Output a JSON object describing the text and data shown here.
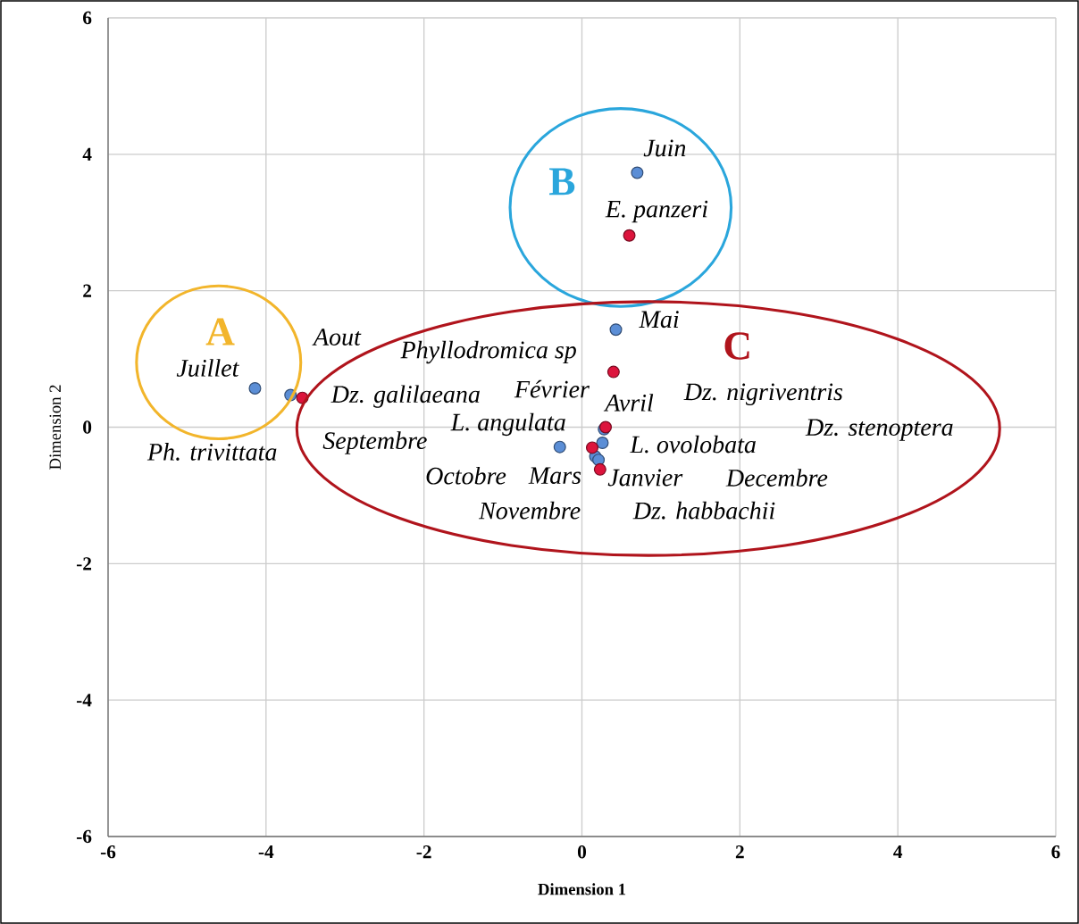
{
  "chart_data": {
    "type": "scatter",
    "xlabel": "Dimension 1",
    "ylabel": "Dimension 2",
    "series": [
      {
        "color": "#5b8ed6",
        "x": [
          -4.14,
          -3.69,
          0.7,
          0.43,
          -0.28,
          0.28,
          0.26,
          0.17,
          0.21
        ],
        "values": [
          0.57,
          0.47,
          3.73,
          1.43,
          -0.29,
          -0.03,
          -0.23,
          -0.43,
          -0.48
        ]
      },
      {
        "color": "#dc143c",
        "x": [
          -3.54,
          0.6,
          0.4,
          0.3,
          0.13,
          0.23
        ],
        "values": [
          0.43,
          2.81,
          0.81,
          0.0,
          -0.3,
          -0.62
        ]
      }
    ],
    "xlim": [
      -6,
      6
    ],
    "ylim": [
      -6,
      6
    ],
    "xticks": [
      -6,
      -4,
      -2,
      0,
      2,
      4,
      6
    ],
    "yticks": [
      -6,
      -4,
      -2,
      0,
      2,
      4,
      6
    ],
    "grid": true,
    "marker": "circle",
    "annotations": [
      "Juin",
      "E. panzeri",
      "Mai",
      "Phyllodromica sp",
      "Juillet",
      "Aout",
      "Dz. galilaeana",
      "Février",
      "Avril",
      "Dz. nigriventris",
      "Ph. trivittata",
      "L. angulata",
      "Dz. stenoptera",
      "Septembre",
      "L. ovolobata",
      "Octobre",
      "Mars",
      "Janvier",
      "Decembre",
      "Novembre",
      "Dz. habbachii",
      "A",
      "B",
      "C"
    ]
  }
}
